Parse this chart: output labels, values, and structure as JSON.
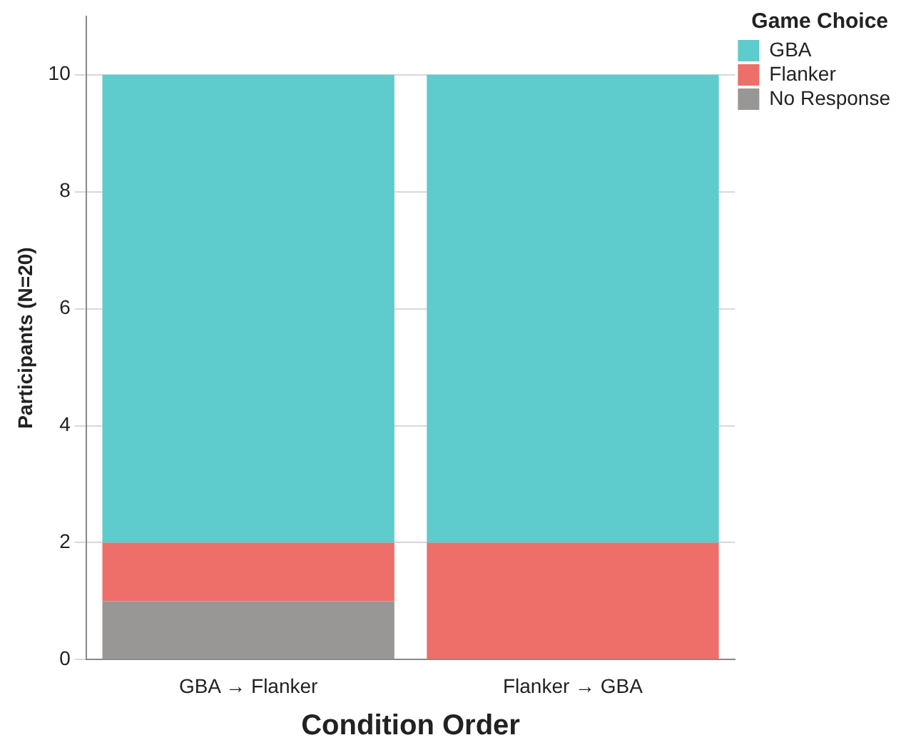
{
  "chart_data": {
    "type": "bar",
    "xlabel": "Condition Order",
    "ylabel": "Participants (N=20)",
    "legend_title": "Game Choice",
    "categories": [
      "GBA → Flanker",
      "Flanker → GBA"
    ],
    "series": [
      {
        "name": "No Response",
        "color": "#999796",
        "values": [
          1,
          0
        ]
      },
      {
        "name": "Flanker",
        "color": "#ee6e69",
        "values": [
          1,
          2
        ]
      },
      {
        "name": "GBA",
        "color": "#5ecbcc",
        "values": [
          8,
          8
        ]
      }
    ],
    "stacked": true,
    "ylim": [
      0,
      11
    ],
    "yticks": [
      0,
      2,
      4,
      6,
      8,
      10
    ],
    "grid": "y",
    "legend": "top right"
  }
}
